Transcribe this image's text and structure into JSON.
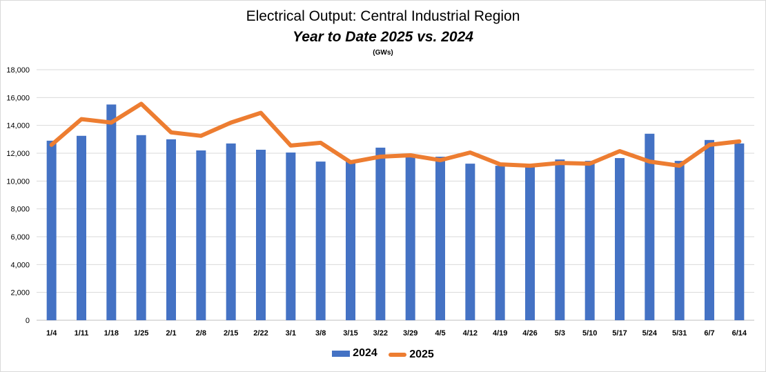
{
  "chart_data": {
    "type": "bar",
    "title": "Electrical Output:  Central Industrial Region",
    "subtitle": "Year to Date 2025 vs. 2024",
    "unit_note": "(GWs)",
    "xlabel": "",
    "ylabel": "",
    "ylim": [
      0,
      18000
    ],
    "yticks": [
      0,
      2000,
      4000,
      6000,
      8000,
      10000,
      12000,
      14000,
      16000,
      18000
    ],
    "ytick_labels": [
      "0",
      "2,000",
      "4,000",
      "6,000",
      "8,000",
      "10,000",
      "12,000",
      "14,000",
      "16,000",
      "18,000"
    ],
    "grid": true,
    "legend_position": "bottom",
    "categories": [
      "1/4",
      "1/11",
      "1/18",
      "1/25",
      "2/1",
      "2/8",
      "2/15",
      "2/22",
      "3/1",
      "3/8",
      "3/15",
      "3/22",
      "3/29",
      "4/5",
      "4/12",
      "4/19",
      "4/26",
      "5/3",
      "5/10",
      "5/17",
      "5/24",
      "5/31",
      "6/7",
      "6/14"
    ],
    "series": [
      {
        "name": "2024",
        "type": "bar",
        "color": "#4472c4",
        "values": [
          12900,
          13250,
          15500,
          13300,
          13000,
          12200,
          12700,
          12250,
          12050,
          11400,
          11400,
          12400,
          11800,
          11750,
          11250,
          11100,
          11000,
          11550,
          11450,
          11650,
          13400,
          11450,
          12950,
          12700
        ]
      },
      {
        "name": "2025",
        "type": "line",
        "color": "#ed7d31",
        "values": [
          12600,
          14450,
          14200,
          15550,
          13500,
          13250,
          14200,
          14900,
          12550,
          12750,
          11350,
          11750,
          11850,
          11500,
          12050,
          11200,
          11100,
          11300,
          11250,
          12150,
          11400,
          11100,
          12600,
          12850
        ]
      }
    ]
  }
}
